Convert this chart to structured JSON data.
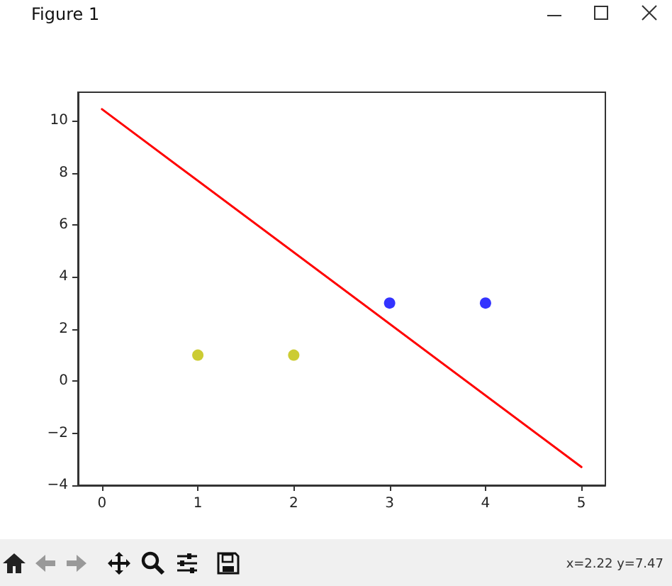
{
  "chart_data": {
    "type": "scatter",
    "title": "Figure 1",
    "series": [
      {
        "color": "#bfbf00",
        "x": [
          1,
          2
        ],
        "values": [
          1,
          1
        ],
        "marker": "circle"
      },
      {
        "color": "#0000ff",
        "x": [
          3,
          4
        ],
        "values": [
          3,
          3
        ],
        "marker": "circle"
      },
      {
        "type": "line",
        "color": "#ff0000",
        "x": [
          0,
          5
        ],
        "values": [
          10.45,
          -3.3
        ],
        "marker": "none",
        "line_style": "solid"
      }
    ],
    "xlim": [
      -0.25,
      5.25
    ],
    "xticks": [
      0,
      1,
      2,
      3,
      4,
      5
    ],
    "ylim": [
      -4,
      11.1
    ],
    "yticks": [
      -4,
      -2,
      0,
      2,
      4,
      6,
      8,
      10
    ],
    "grid": false,
    "annotations": [
      "x=2.22 y=7.47"
    ]
  }
}
